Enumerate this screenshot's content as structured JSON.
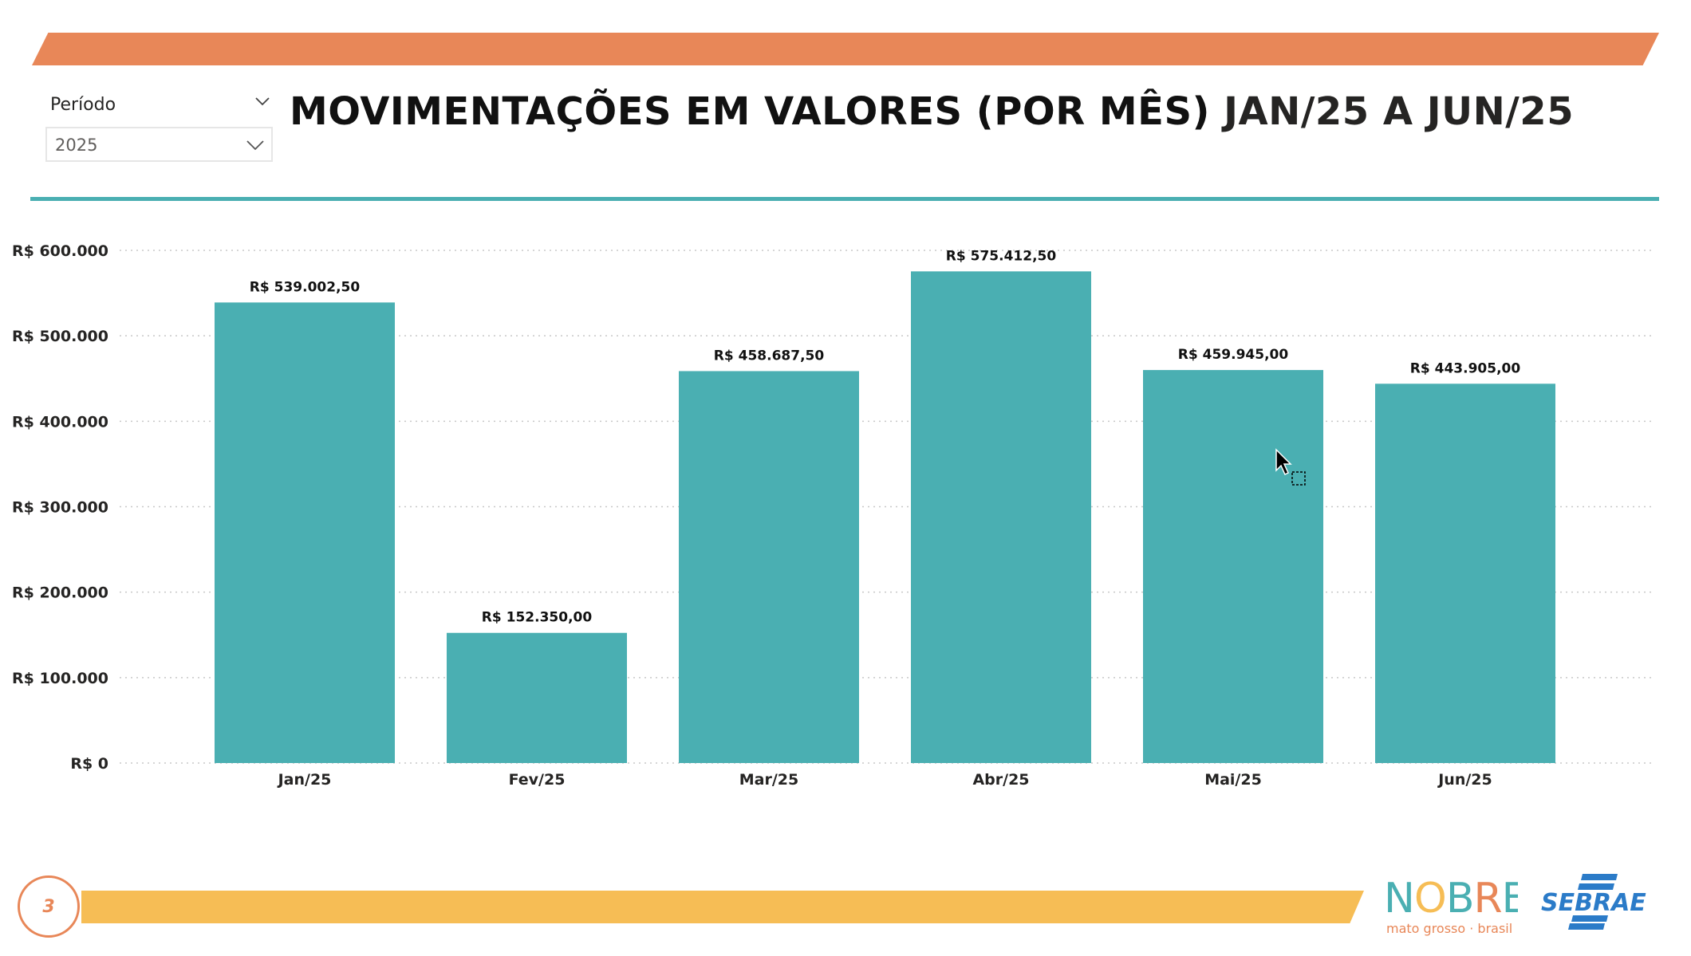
{
  "filter": {
    "label": "Período",
    "selected": "2025"
  },
  "title": {
    "main": "MOVIMENTAÇÕES EM VALORES (POR MÊS)",
    "period": "JAN/25 A JUN/25"
  },
  "page_number": "3",
  "logos": {
    "nobres": "NOBRES",
    "nobres_tagline": "mato grosso · brasil",
    "sebrae": "SEBRAE"
  },
  "colors": {
    "bar": "#4AAFB2",
    "top_band": "#E88758",
    "bottom_band": "#F6BD55",
    "sebrae": "#2B7BC8"
  },
  "chart_data": {
    "type": "bar",
    "title": "MOVIMENTAÇÕES EM VALORES (POR MÊS) JAN/25 A JUN/25",
    "categories": [
      "Jan/25",
      "Fev/25",
      "Mar/25",
      "Abr/25",
      "Mai/25",
      "Jun/25"
    ],
    "values": [
      539002.5,
      152350.0,
      458687.5,
      575412.5,
      459945.0,
      443905.0
    ],
    "data_labels": [
      "R$ 539.002,50",
      "R$ 152.350,00",
      "R$ 458.687,50",
      "R$ 575.412,50",
      "R$ 459.945,00",
      "R$ 443.905,00"
    ],
    "yticks": [
      0,
      100000,
      200000,
      300000,
      400000,
      500000,
      600000
    ],
    "ytick_labels": [
      "R$ 0",
      "R$ 100.000",
      "R$ 200.000",
      "R$ 300.000",
      "R$ 400.000",
      "R$ 500.000",
      "R$ 600.000"
    ],
    "ylim": [
      0,
      600000
    ],
    "xlabel": "",
    "ylabel": "",
    "grid": true,
    "legend": "none"
  }
}
